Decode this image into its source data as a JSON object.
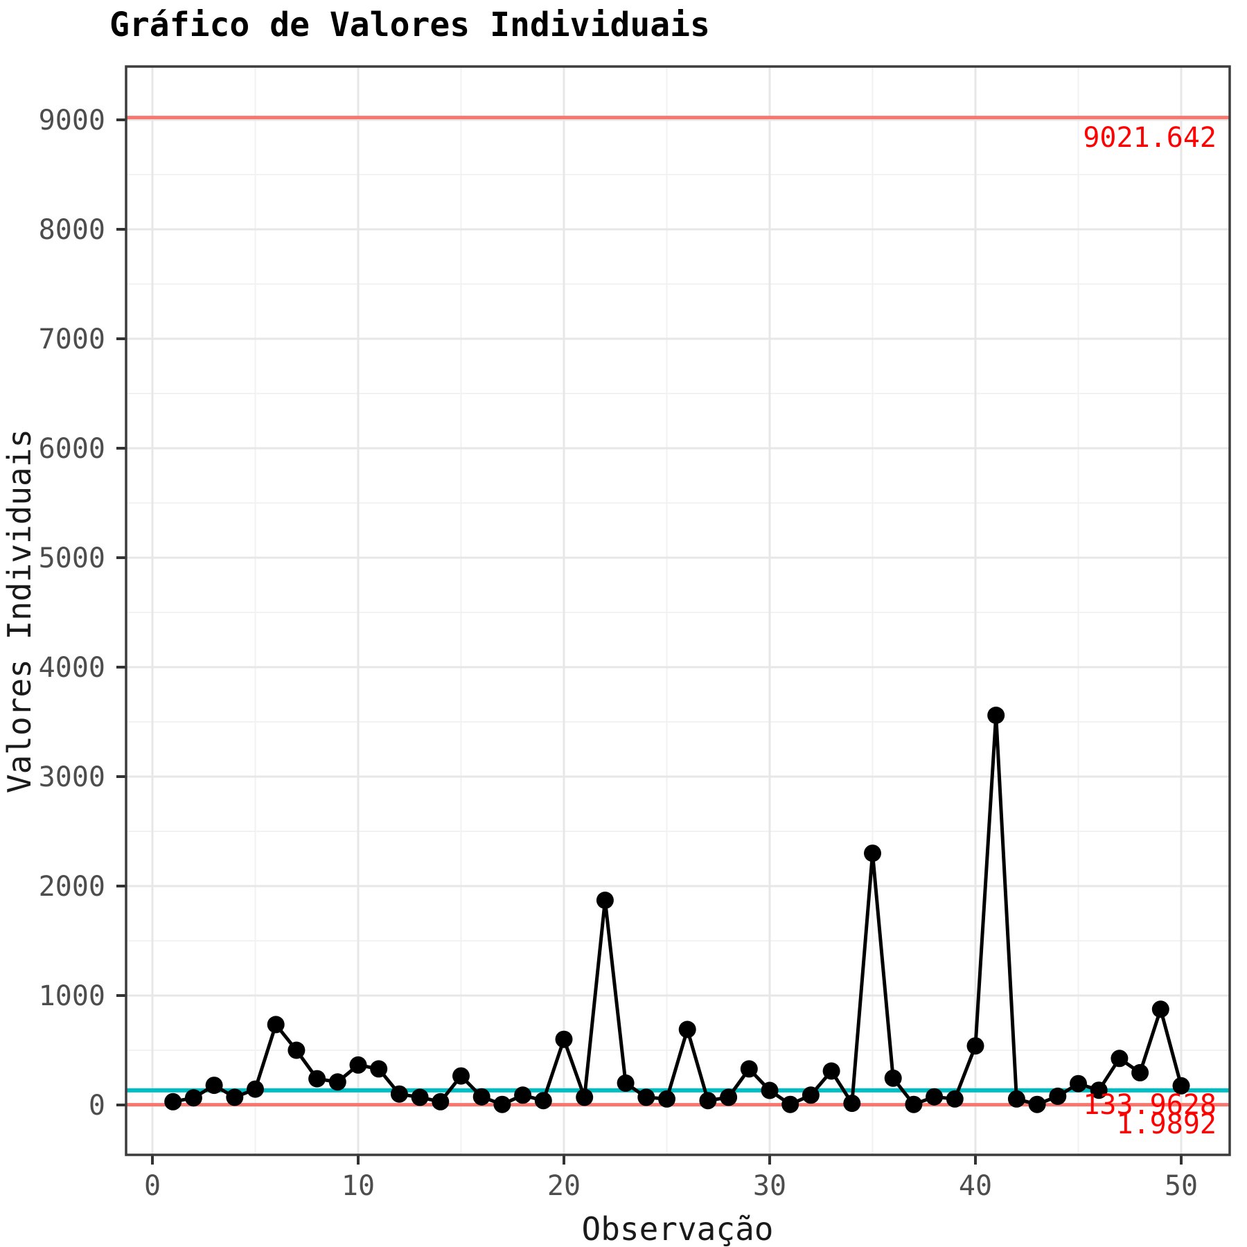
{
  "title": "Gráfico de Valores Individuais",
  "chart_data": {
    "type": "line",
    "title": "Gráfico de Valores Individuais",
    "xlabel": "Observação",
    "ylabel": "Valores Individuais",
    "x": [
      1,
      2,
      3,
      4,
      5,
      6,
      7,
      8,
      9,
      10,
      11,
      12,
      13,
      14,
      15,
      16,
      17,
      18,
      19,
      20,
      21,
      22,
      23,
      24,
      25,
      26,
      27,
      28,
      29,
      30,
      31,
      32,
      33,
      34,
      35,
      36,
      37,
      38,
      39,
      40,
      41,
      42,
      43,
      44,
      45,
      46,
      47,
      48,
      49,
      50
    ],
    "values": [
      30,
      65,
      180,
      70,
      145,
      735,
      500,
      240,
      210,
      365,
      330,
      100,
      70,
      30,
      265,
      75,
      5,
      90,
      40,
      600,
      70,
      1870,
      200,
      70,
      55,
      690,
      40,
      70,
      330,
      133,
      5,
      90,
      310,
      15,
      2300,
      245,
      5,
      75,
      55,
      540,
      3560,
      55,
      5,
      80,
      195,
      135,
      425,
      295,
      875,
      175
    ],
    "control_lines": {
      "ucl": {
        "value": 9021.642,
        "label": "9021.642"
      },
      "center": {
        "value": 133.9628,
        "label": "133.9628"
      },
      "lcl": {
        "value": 1.9892,
        "label": "1.9892"
      }
    },
    "x_ticks": {
      "major": [
        0,
        10,
        20,
        30,
        40,
        50
      ],
      "minor": [
        5,
        15,
        25,
        35,
        45
      ],
      "labels": [
        "0",
        "10",
        "20",
        "30",
        "40",
        "50"
      ]
    },
    "y_ticks": {
      "major": [
        0,
        1000,
        2000,
        3000,
        4000,
        5000,
        6000,
        7000,
        8000,
        9000
      ],
      "minor": [
        500,
        1500,
        2500,
        3500,
        4500,
        5500,
        6500,
        7500,
        8500
      ],
      "labels": [
        "0",
        "1000",
        "2000",
        "3000",
        "4000",
        "5000",
        "6000",
        "7000",
        "8000",
        "9000"
      ]
    },
    "xlim": [
      -1.3,
      52.4
    ],
    "ylim": [
      -455,
      9487
    ],
    "grid": "major+minor",
    "legend": "none",
    "colors": {
      "limit_line": "#F8766D",
      "center_line": "#00BFC4",
      "series_line": "#000000",
      "point_fill": "#000000",
      "limit_label_text": "#FF0000",
      "grid_major": "#E7E7E7",
      "grid_minor": "#F2F2F2",
      "tick_text": "#4D4D4D",
      "panel_border": "#3C3C3C",
      "background": "#FFFFFF"
    }
  }
}
